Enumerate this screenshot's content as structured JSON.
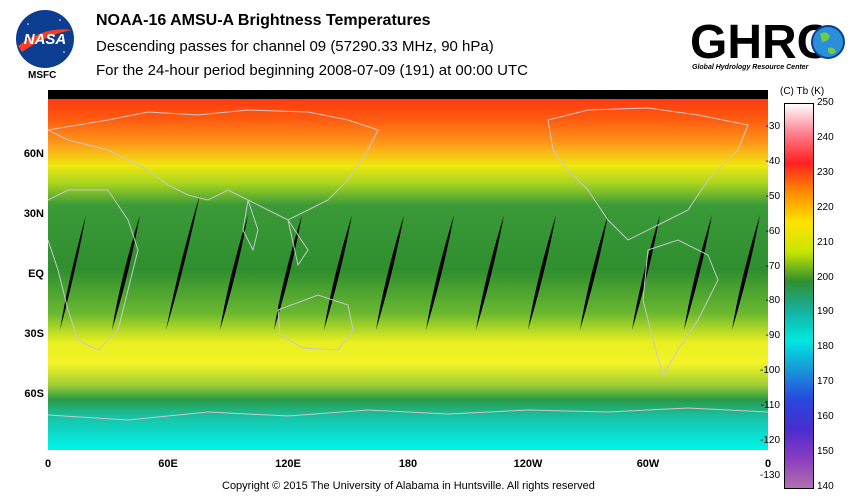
{
  "header": {
    "title": "NOAA-16 AMSU-A Brightness Temperatures",
    "subtitle": "Descending passes for channel 09 (57290.33 MHz, 90 hPa)",
    "period": "For the 24-hour period beginning 2008-07-09 (191) at 00:00 UTC"
  },
  "logos": {
    "nasa_text": "NASA",
    "msfc_text": "MSFC",
    "ghrc_text": "GHRC",
    "ghrc_subtitle": "Global Hydrology Resource Center"
  },
  "map": {
    "lat_labels": [
      "60N",
      "30N",
      "EQ",
      "30S",
      "60S"
    ],
    "lon_labels": [
      "0",
      "60E",
      "120E",
      "180",
      "120W",
      "60W",
      "0"
    ]
  },
  "colorbar": {
    "header": "(C)  Tb  (K)",
    "celsius_ticks": [
      "-30",
      "-40",
      "-50",
      "-60",
      "-70",
      "-80",
      "-90",
      "-100",
      "-110",
      "-120",
      "-130"
    ],
    "kelvin_ticks": [
      "250",
      "240",
      "230",
      "220",
      "210",
      "200",
      "190",
      "180",
      "170",
      "160",
      "150",
      "140"
    ],
    "colors": [
      "#ffffff",
      "#ff7f8f",
      "#ff2020",
      "#ff8c00",
      "#ffe400",
      "#c8e600",
      "#2f8f2f",
      "#16b0a0",
      "#00e8e0",
      "#1896d8",
      "#2848e0",
      "#4a2cd0",
      "#8a3cc0",
      "#b070b0"
    ]
  },
  "footer": {
    "copyright": "Copyright © 2015 The University of Alabama in Huntsville.  All rights reserved"
  }
}
